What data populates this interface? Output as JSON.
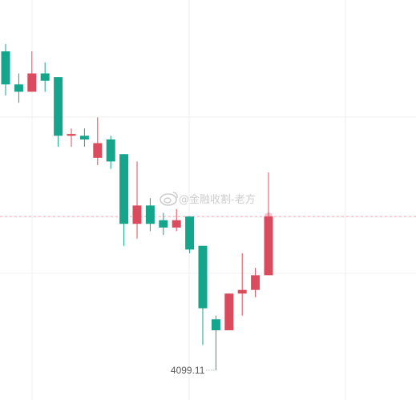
{
  "chart_data": {
    "type": "candlestick",
    "colors": {
      "up": "#db4b5e",
      "down": "#15a58d",
      "grid": "#efefef",
      "price_line": "#f0a8b0",
      "watermark": "#c8c8c8"
    },
    "y_range": [
      4091,
      4200
    ],
    "current_price": 4141,
    "low_marker": {
      "label": "4099.11",
      "value": 4099.11
    },
    "watermark": "@金融收割-老方",
    "candles": [
      {
        "open": 4186,
        "close": 4177,
        "high": 4188,
        "low": 4174
      },
      {
        "open": 4177,
        "close": 4175,
        "high": 4180,
        "low": 4172
      },
      {
        "open": 4175,
        "close": 4180,
        "high": 4186,
        "low": 4175
      },
      {
        "open": 4180,
        "close": 4178,
        "high": 4183,
        "low": 4175
      },
      {
        "open": 4179,
        "close": 4163,
        "high": 4179,
        "low": 4160
      },
      {
        "open": 4163,
        "close": 4163.5,
        "high": 4165,
        "low": 4160
      },
      {
        "open": 4163,
        "close": 4162,
        "high": 4165,
        "low": 4160
      },
      {
        "open": 4157,
        "close": 4161,
        "high": 4168,
        "low": 4155
      },
      {
        "open": 4162,
        "close": 4156,
        "high": 4163,
        "low": 4154
      },
      {
        "open": 4158,
        "close": 4139,
        "high": 4158,
        "low": 4133
      },
      {
        "open": 4139,
        "close": 4144,
        "high": 4156,
        "low": 4135
      },
      {
        "open": 4144,
        "close": 4139,
        "high": 4146,
        "low": 4137
      },
      {
        "open": 4140,
        "close": 4138,
        "high": 4142,
        "low": 4136
      },
      {
        "open": 4138,
        "close": 4140,
        "high": 4143,
        "low": 4137
      },
      {
        "open": 4141,
        "close": 4132,
        "high": 4141,
        "low": 4131
      },
      {
        "open": 4133,
        "close": 4116,
        "high": 4133,
        "low": 4106
      },
      {
        "open": 4113,
        "close": 4110,
        "high": 4114,
        "low": 4099.11
      },
      {
        "open": 4110,
        "close": 4120,
        "high": 4120,
        "low": 4110
      },
      {
        "open": 4120,
        "close": 4121,
        "high": 4131,
        "low": 4114
      },
      {
        "open": 4121,
        "close": 4125,
        "high": 4127,
        "low": 4119
      },
      {
        "open": 4125,
        "close": 4141,
        "high": 4153,
        "low": 4125
      }
    ]
  }
}
